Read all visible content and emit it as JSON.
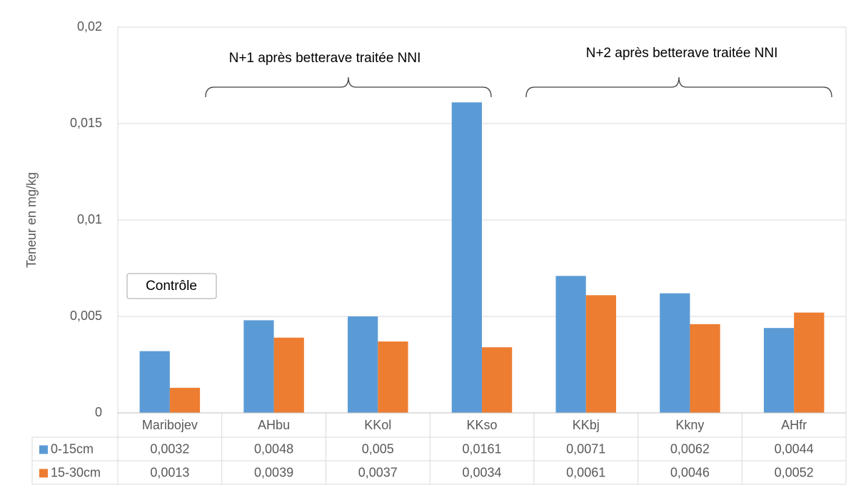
{
  "chart_data": {
    "type": "bar",
    "ylabel": "Teneur en mg/kg",
    "categories": [
      "Maribojev",
      "AHbu",
      "KKol",
      "KKso",
      "KKbj",
      "Kkny",
      "AHfr"
    ],
    "series": [
      {
        "name": "0-15cm",
        "color": "#5b9bd5",
        "values": [
          0.0032,
          0.0048,
          0.005,
          0.0161,
          0.0071,
          0.0062,
          0.0044
        ],
        "value_labels": [
          "0,0032",
          "0,0048",
          "0,005",
          "0,0161",
          "0,0071",
          "0,0062",
          "0,0044"
        ]
      },
      {
        "name": "15-30cm",
        "color": "#ed7d31",
        "values": [
          0.0013,
          0.0039,
          0.0037,
          0.0034,
          0.0061,
          0.0046,
          0.0052
        ],
        "value_labels": [
          "0,0013",
          "0,0039",
          "0,0037",
          "0,0034",
          "0,0061",
          "0,0046",
          "0,0052"
        ]
      }
    ],
    "ylim": [
      0,
      0.02
    ],
    "yticks": [
      0,
      {
        "value": 0.005,
        "label": "0,005"
      },
      {
        "value": 0.01,
        "label": "0,01"
      },
      {
        "value": 0.015,
        "label": "0,015"
      },
      {
        "value": 0.02,
        "label": "0,02"
      }
    ],
    "grid": true,
    "annotations": [
      "N+1 après betterave traitée NNI",
      "N+2 après betterave traitée NNI",
      "Contrôle"
    ]
  }
}
